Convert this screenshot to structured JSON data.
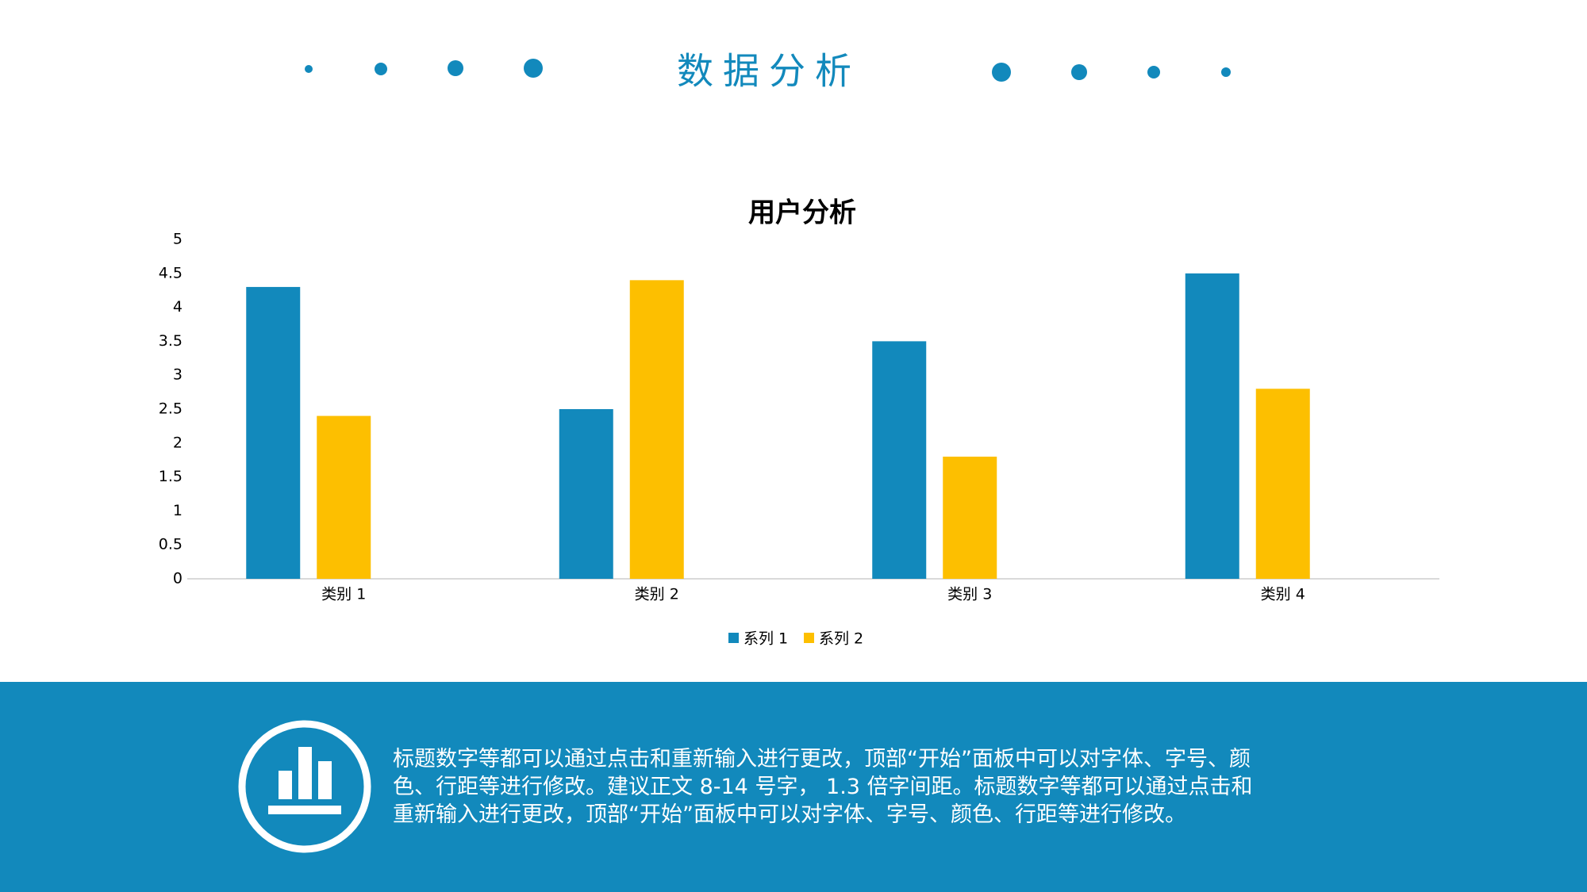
{
  "header": {
    "title": "数据分析"
  },
  "chart_data": {
    "type": "bar",
    "title": "用户分析",
    "categories": [
      "类别 1",
      "类别 2",
      "类别 3",
      "类别 4"
    ],
    "series": [
      {
        "name": "系列 1",
        "color": "#1289bc",
        "values": [
          4.3,
          2.5,
          3.5,
          4.5
        ]
      },
      {
        "name": "系列 2",
        "color": "#fdbf00",
        "values": [
          2.4,
          4.4,
          1.8,
          2.8
        ]
      }
    ],
    "ylim": [
      0,
      5
    ],
    "yticks": [
      0,
      0.5,
      1,
      1.5,
      2,
      2.5,
      3,
      3.5,
      4,
      4.5,
      5
    ],
    "grid": false,
    "legend": "bottom"
  },
  "footer": {
    "lines": [
      "标题数字等都可以通过点击和重新输入进行更改，顶部“开始”面板中可以对字体、字号、颜",
      "色、行距等进行修改。建议正文 8-14 号字， 1.3 倍字间距。标题数字等都可以通过点击和",
      "重新输入进行更改，顶部“开始”面板中可以对字体、字号、颜色、行距等进行修改。"
    ]
  }
}
